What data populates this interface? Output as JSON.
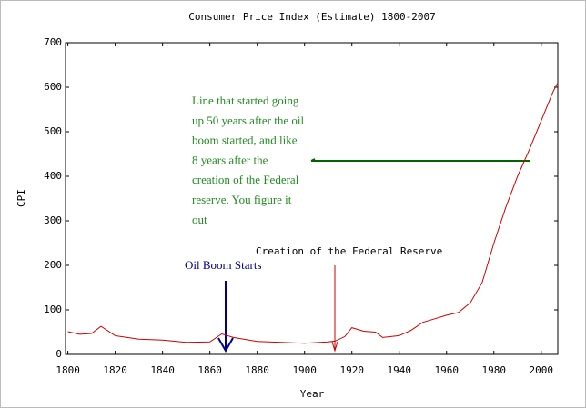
{
  "chart_data": {
    "type": "line",
    "title": "Consumer Price Index (Estimate) 1800-2007",
    "x_label": "Year",
    "y_label": "CPI",
    "x": [
      1800,
      1805,
      1810,
      1814,
      1820,
      1830,
      1840,
      1850,
      1860,
      1865,
      1870,
      1880,
      1890,
      1900,
      1910,
      1913,
      1917,
      1920,
      1925,
      1930,
      1933,
      1940,
      1945,
      1950,
      1955,
      1960,
      1965,
      1970,
      1975,
      1980,
      1985,
      1990,
      1995,
      2000,
      2005,
      2007
    ],
    "values": [
      51,
      45,
      47,
      63,
      42,
      34,
      32,
      27,
      28,
      46,
      38,
      29,
      27,
      25,
      28,
      30,
      40,
      60,
      52,
      50,
      38,
      42,
      54,
      72,
      80,
      88,
      94,
      116,
      161,
      250,
      330,
      400,
      460,
      525,
      590,
      610
    ],
    "color": "#cc0000",
    "xlim": [
      1799,
      2007
    ],
    "ylim": [
      0,
      700
    ],
    "xticks": [
      1800,
      1820,
      1840,
      1860,
      1880,
      1900,
      1920,
      1940,
      1960,
      1980,
      2000
    ],
    "yticks": [
      0,
      100,
      200,
      300,
      400,
      500,
      600,
      700
    ],
    "annotations": {
      "note_lines": [
        "Line that started going",
        "up 50 years after the oil",
        "boom started,  and like",
        "8 years after the",
        "creation of the Federal",
        "reserve. You figure it",
        "out"
      ],
      "oil": "Oil Boom Starts",
      "fed": "Creation of the Federal Reserve"
    }
  }
}
